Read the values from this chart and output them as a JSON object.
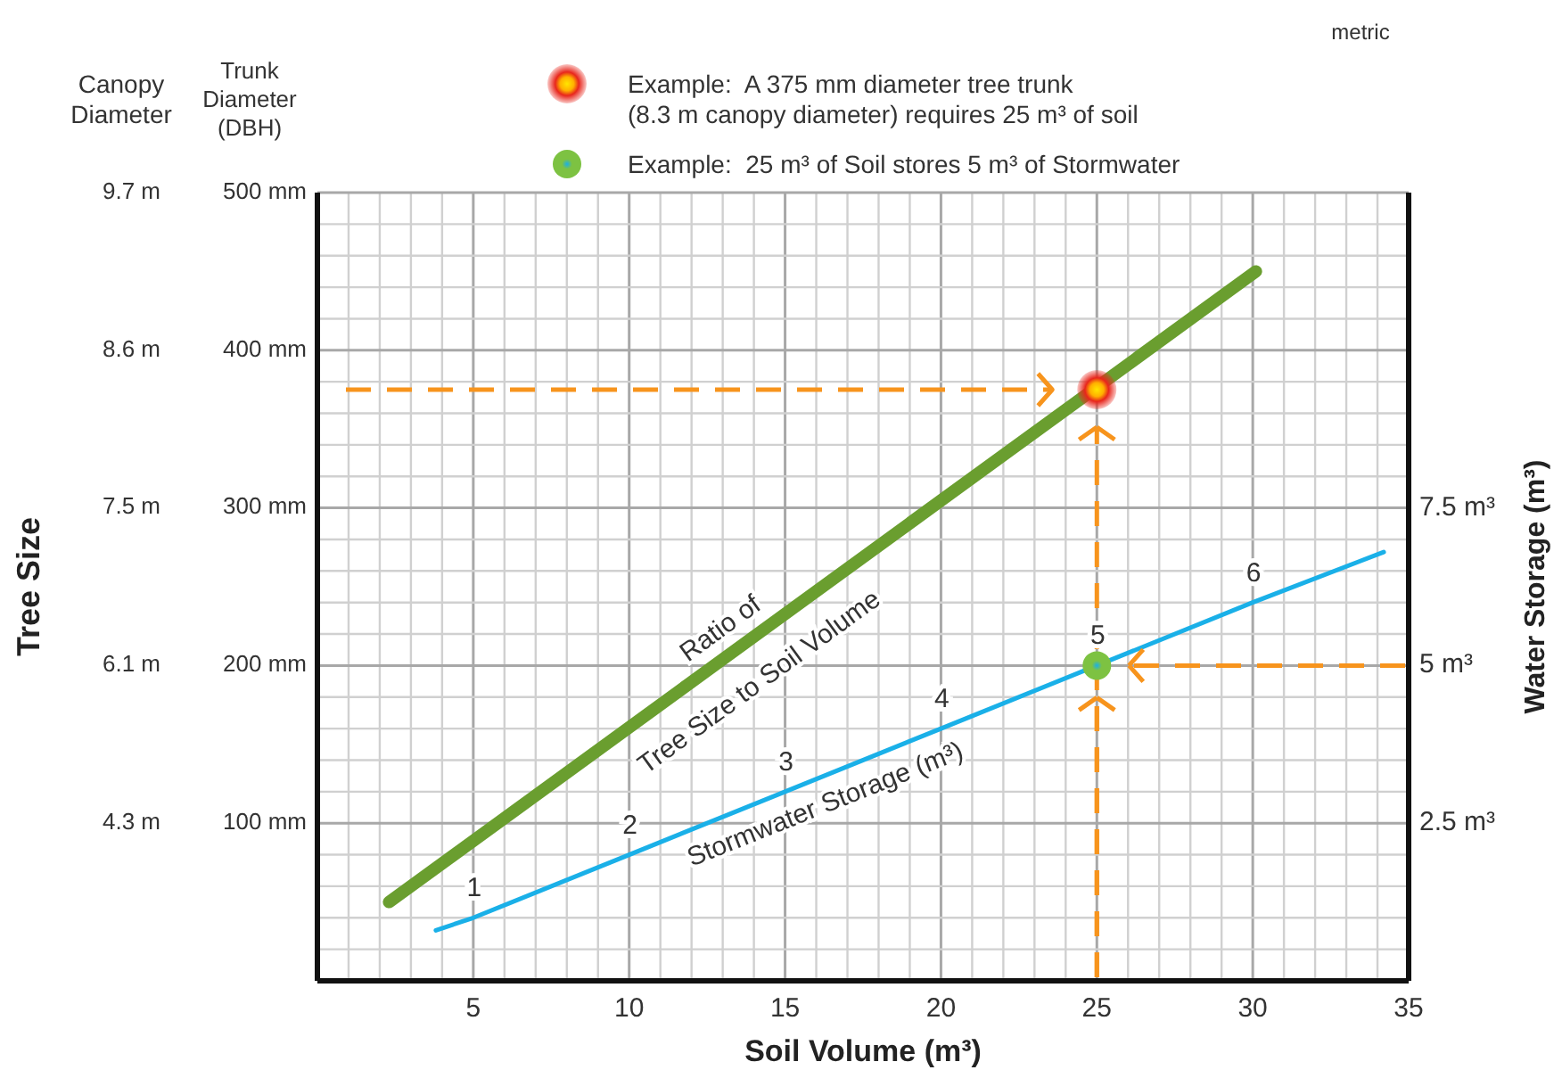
{
  "chart_data": {
    "type": "line",
    "xlabel": "Soil Volume (m³)",
    "ylabel": "Trunk Diameter (DBH)",
    "y2label": "Water Storage (m³)",
    "annotations": [
      "metric",
      "Tree Size",
      "Canopy Diameter",
      "9.7 m",
      "8.6 m",
      "7.5 m",
      "6.1 m",
      "4.3 m"
    ],
    "xlim": [
      0,
      35
    ],
    "xticks": [
      {
        "value": 0,
        "label": null
      },
      {
        "value": 1,
        "label": null
      },
      {
        "value": 2,
        "label": null
      },
      {
        "value": 3,
        "label": null
      },
      {
        "value": 4,
        "label": null
      },
      5,
      {
        "value": 6,
        "label": null
      },
      {
        "value": 7,
        "label": null
      },
      {
        "value": 8,
        "label": null
      },
      {
        "value": 9,
        "label": null
      },
      10,
      {
        "value": 11,
        "label": null
      },
      {
        "value": 12,
        "label": null
      },
      {
        "value": 13,
        "label": null
      },
      {
        "value": 14,
        "label": null
      },
      15,
      {
        "value": 16,
        "label": null
      },
      {
        "value": 17,
        "label": null
      },
      {
        "value": 18,
        "label": null
      },
      {
        "value": 19,
        "label": null
      },
      20,
      {
        "value": 21,
        "label": null
      },
      {
        "value": 22,
        "label": null
      },
      {
        "value": 23,
        "label": null
      },
      {
        "value": 24,
        "label": null
      },
      25,
      {
        "value": 26,
        "label": null
      },
      {
        "value": 27,
        "label": null
      },
      {
        "value": 28,
        "label": null
      },
      {
        "value": 29,
        "label": null
      },
      30,
      {
        "value": 31,
        "label": null
      },
      {
        "value": 32,
        "label": null
      },
      {
        "value": 33,
        "label": null
      },
      {
        "value": 34,
        "label": null
      },
      35
    ],
    "ylim": [
      0,
      500
    ],
    "yticks": [
      {
        "value": 0,
        "label": null
      },
      {
        "value": 20,
        "label": null
      },
      {
        "value": 40,
        "label": null
      },
      {
        "value": 60,
        "label": null
      },
      {
        "value": 80,
        "label": null
      },
      {
        "value": 100,
        "label": "100 mm"
      },
      {
        "value": 120,
        "label": null
      },
      {
        "value": 140,
        "label": null
      },
      {
        "value": 160,
        "label": null
      },
      {
        "value": 180,
        "label": null
      },
      {
        "value": 200,
        "label": "200 mm"
      },
      {
        "value": 220,
        "label": null
      },
      {
        "value": 240,
        "label": null
      },
      {
        "value": 260,
        "label": null
      },
      {
        "value": 280,
        "label": null
      },
      {
        "value": 300,
        "label": "300 mm"
      },
      {
        "value": 320,
        "label": null
      },
      {
        "value": 340,
        "label": null
      },
      {
        "value": 360,
        "label": null
      },
      {
        "value": 380,
        "label": null
      },
      {
        "value": 400,
        "label": "400 mm"
      },
      {
        "value": 420,
        "label": null
      },
      {
        "value": 440,
        "label": null
      },
      {
        "value": 460,
        "label": null
      },
      {
        "value": 480,
        "label": null
      },
      {
        "value": 500,
        "label": "500 mm"
      }
    ],
    "y2lim": [
      0,
      12.5
    ],
    "y2ticks": [
      {
        "value": 2.5,
        "label": "2.5 m³"
      },
      {
        "value": 5,
        "label": "5 m³"
      },
      {
        "value": 7.5,
        "label": "7.5 m³"
      }
    ],
    "grid": true,
    "legend": "top",
    "line_style": "solid",
    "ref_lines": [
      {
        "axis": "y",
        "value": 375,
        "color": "#f7941d",
        "line_style": "dashed"
      }
    ],
    "series": [
      {
        "name": "Ratio of Tree Size to Soil Volume",
        "color": "#6a9e2f",
        "x": [
          2.3,
          30.1
        ],
        "values": [
          50,
          450
        ]
      },
      {
        "name": "Stormwater Storage (m³)",
        "color": "#1ab0e8",
        "axis": "y2",
        "x": [
          3.8,
          5,
          10,
          15,
          20,
          25,
          30,
          34.2
        ],
        "values": [
          0.8,
          1,
          2,
          3,
          4,
          5,
          6,
          6.8
        ],
        "value_labels": [
          null,
          "1",
          "2",
          "3",
          "4",
          "5",
          "6",
          null
        ]
      },
      {
        "type": "scatter",
        "marker": "circle",
        "name": "Example:  A 375 mm diameter tree trunk (8.3 m canopy diameter) requires 25 m³ of soil",
        "color": "#e8261c",
        "x": [
          25
        ],
        "values": [
          375
        ]
      },
      {
        "type": "scatter",
        "marker": "circle",
        "name": "Example:  25 m³ of Soil stores 5 m³ of Stormwater",
        "color": "#7dc242",
        "axis": "y2",
        "x": [
          25
        ],
        "values": [
          5
        ]
      }
    ]
  }
}
